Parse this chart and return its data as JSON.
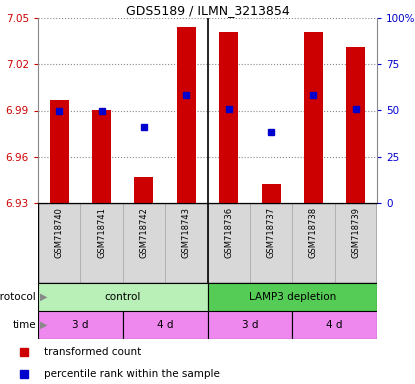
{
  "title": "GDS5189 / ILMN_3213854",
  "samples": [
    "GSM718740",
    "GSM718741",
    "GSM718742",
    "GSM718743",
    "GSM718736",
    "GSM718737",
    "GSM718738",
    "GSM718739"
  ],
  "red_values": [
    6.997,
    6.99,
    6.947,
    7.044,
    7.041,
    6.942,
    7.041,
    7.031
  ],
  "blue_values": [
    6.99,
    6.99,
    6.979,
    7.0,
    6.991,
    6.976,
    7.0,
    6.991
  ],
  "ylim_left": [
    6.93,
    7.05
  ],
  "ylim_right": [
    0,
    100
  ],
  "yticks_left": [
    6.93,
    6.96,
    6.99,
    7.02,
    7.05
  ],
  "yticks_right": [
    0,
    25,
    50,
    75,
    100
  ],
  "ytick_labels_left": [
    "6.93",
    "6.96",
    "6.99",
    "7.02",
    "7.05"
  ],
  "ytick_labels_right": [
    "0",
    "25",
    "50",
    "75",
    "100%"
  ],
  "bar_color": "#cc0000",
  "dot_color": "#0000cc",
  "background_color": "#ffffff",
  "label_color_left": "#cc0000",
  "label_color_right": "#0000cc",
  "ctrl_color": "#b8f0b8",
  "lamp_color": "#55cc55",
  "time_color": "#ee88ee",
  "sample_bg": "#d8d8d8"
}
